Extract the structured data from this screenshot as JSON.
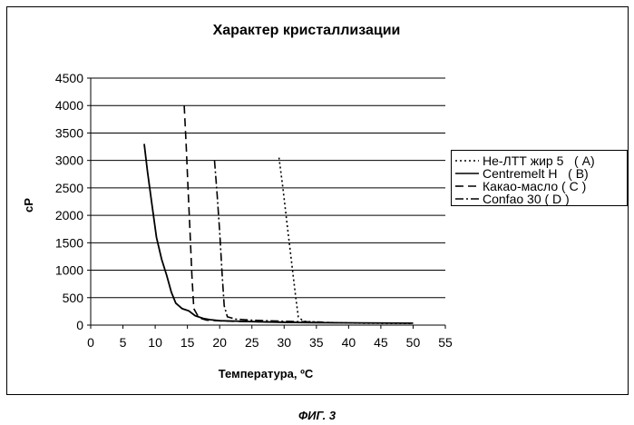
{
  "figure_caption": "ФИГ. 3",
  "chart_data": {
    "type": "line",
    "title": "Характер кристаллизации",
    "xlabel": "Температура, ºC",
    "ylabel": "cP",
    "xlim": [
      0,
      55
    ],
    "ylim": [
      0,
      4500
    ],
    "x_ticks": [
      0,
      5,
      10,
      15,
      20,
      25,
      30,
      35,
      40,
      45,
      50,
      55
    ],
    "y_ticks": [
      0,
      500,
      1000,
      1500,
      2000,
      2500,
      3000,
      3500,
      4000,
      4500
    ],
    "grid": "horizontal",
    "legend_position": "right",
    "series": [
      {
        "name": "Не-ЛТТ жир 5   ( A)",
        "style": "dotted",
        "points": [
          [
            29.2,
            3050
          ],
          [
            29.8,
            2500
          ],
          [
            30.5,
            1800
          ],
          [
            31.2,
            1100
          ],
          [
            31.8,
            500
          ],
          [
            32.2,
            150
          ],
          [
            33,
            70
          ],
          [
            36,
            50
          ],
          [
            42,
            35
          ],
          [
            50,
            30
          ]
        ]
      },
      {
        "name": "Centremelt H   ( B)",
        "style": "solid",
        "points": [
          [
            8.3,
            3300
          ],
          [
            8.8,
            2800
          ],
          [
            9.5,
            2200
          ],
          [
            10.2,
            1600
          ],
          [
            11,
            1200
          ],
          [
            11.8,
            900
          ],
          [
            12.5,
            600
          ],
          [
            13.2,
            400
          ],
          [
            14.2,
            300
          ],
          [
            15.2,
            260
          ],
          [
            16.2,
            170
          ],
          [
            17.5,
            120
          ],
          [
            18.5,
            100
          ],
          [
            20,
            80
          ],
          [
            22,
            75
          ],
          [
            26,
            60
          ],
          [
            30,
            50
          ],
          [
            35,
            45
          ],
          [
            42,
            40
          ],
          [
            50,
            35
          ]
        ]
      },
      {
        "name": "Какао-масло ( C )",
        "style": "dashed",
        "points": [
          [
            14.5,
            4000
          ],
          [
            14.8,
            3300
          ],
          [
            15.1,
            2500
          ],
          [
            15.4,
            1700
          ],
          [
            15.7,
            900
          ],
          [
            16,
            300
          ],
          [
            16.8,
            130
          ],
          [
            18,
            90
          ],
          [
            22,
            70
          ],
          [
            30,
            55
          ],
          [
            38,
            45
          ]
        ]
      },
      {
        "name": "Confao 30 ( D )",
        "style": "dashdot",
        "points": [
          [
            19.2,
            3000
          ],
          [
            19.6,
            2400
          ],
          [
            20,
            1700
          ],
          [
            20.4,
            900
          ],
          [
            20.7,
            350
          ],
          [
            21.2,
            150
          ],
          [
            22.5,
            110
          ],
          [
            25,
            90
          ],
          [
            30,
            70
          ],
          [
            36,
            55
          ]
        ]
      }
    ]
  }
}
